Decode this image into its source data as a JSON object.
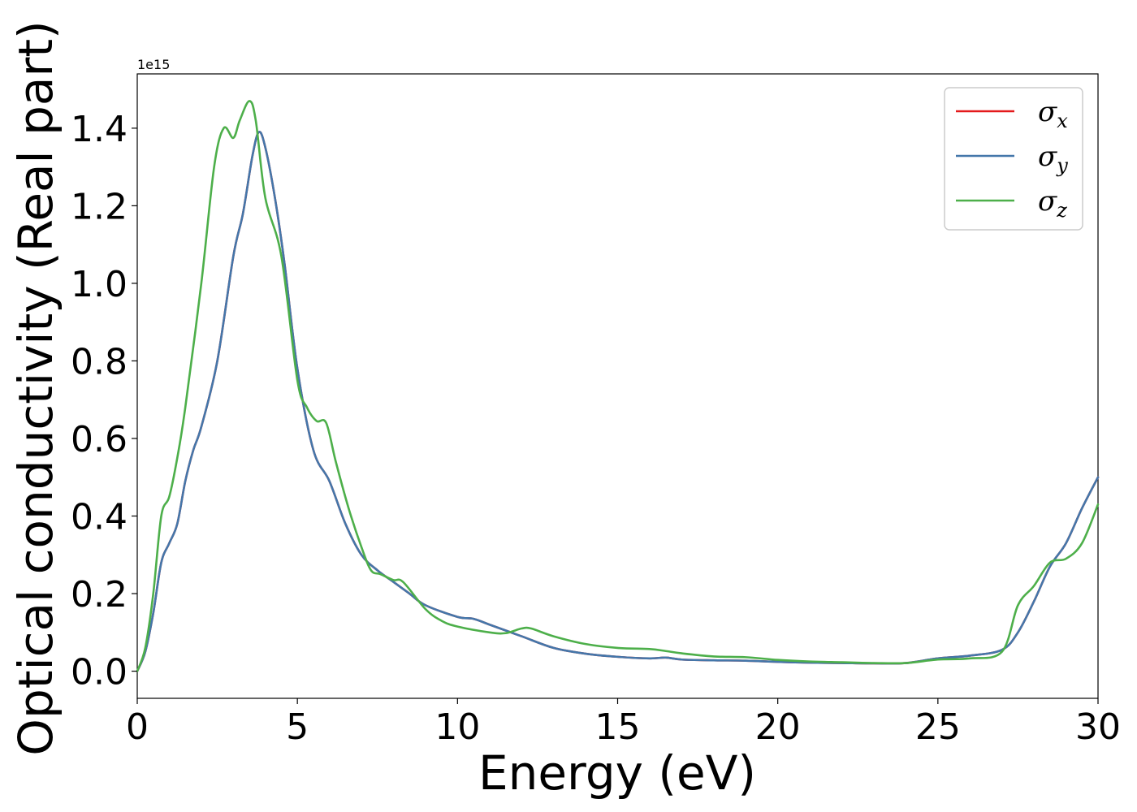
{
  "chart_data": {
    "type": "line",
    "title": "",
    "xlabel": "Energy (eV)",
    "ylabel": "Optical conductivity (Real part)",
    "y_offset_text": "1e15",
    "xlim": [
      0,
      30
    ],
    "ylim": [
      -0.07,
      1.54
    ],
    "x_ticks": [
      0,
      5,
      10,
      15,
      20,
      25,
      30
    ],
    "x_tick_labels": [
      "0",
      "5",
      "10",
      "15",
      "20",
      "25",
      "30"
    ],
    "y_ticks": [
      0.0,
      0.2,
      0.4,
      0.6,
      0.8,
      1.0,
      1.2,
      1.4
    ],
    "y_tick_labels": [
      "0.0",
      "0.2",
      "0.4",
      "0.6",
      "0.8",
      "1.0",
      "1.2",
      "1.4"
    ],
    "grid": false,
    "legend_position": "top-right",
    "series": [
      {
        "name": "σx",
        "legend_base": "σ",
        "legend_sub": "x",
        "color": "#e41a1c",
        "x": [
          0,
          0.25,
          0.5,
          0.75,
          1.0,
          1.25,
          1.5,
          1.75,
          2.0,
          2.5,
          3.0,
          3.3,
          3.6,
          3.8,
          4.0,
          4.3,
          4.6,
          5.0,
          5.5,
          6.0,
          6.5,
          7.0,
          7.5,
          8.0,
          8.5,
          9.0,
          10.0,
          10.5,
          11.0,
          12.0,
          13.0,
          14.0,
          15.0,
          16.0,
          16.5,
          17.0,
          18.0,
          19.0,
          20.0,
          21.0,
          22.0,
          23.0,
          24.0,
          25.0,
          26.0,
          27.0,
          27.5,
          28.0,
          28.5,
          29.0,
          29.5,
          30.0
        ],
        "y": [
          0.0,
          0.05,
          0.15,
          0.28,
          0.33,
          0.38,
          0.49,
          0.57,
          0.63,
          0.8,
          1.07,
          1.18,
          1.33,
          1.39,
          1.35,
          1.22,
          1.05,
          0.78,
          0.57,
          0.49,
          0.38,
          0.3,
          0.26,
          0.23,
          0.2,
          0.17,
          0.14,
          0.135,
          0.12,
          0.09,
          0.06,
          0.045,
          0.037,
          0.033,
          0.035,
          0.03,
          0.028,
          0.027,
          0.024,
          0.022,
          0.021,
          0.02,
          0.021,
          0.033,
          0.04,
          0.055,
          0.1,
          0.18,
          0.27,
          0.33,
          0.42,
          0.5
        ]
      },
      {
        "name": "σy",
        "legend_base": "σ",
        "legend_sub": "y",
        "color": "#4477aa",
        "x": [
          0,
          0.25,
          0.5,
          0.75,
          1.0,
          1.25,
          1.5,
          1.75,
          2.0,
          2.5,
          3.0,
          3.3,
          3.6,
          3.8,
          4.0,
          4.3,
          4.6,
          5.0,
          5.5,
          6.0,
          6.5,
          7.0,
          7.5,
          8.0,
          8.5,
          9.0,
          10.0,
          10.5,
          11.0,
          12.0,
          13.0,
          14.0,
          15.0,
          16.0,
          16.5,
          17.0,
          18.0,
          19.0,
          20.0,
          21.0,
          22.0,
          23.0,
          24.0,
          25.0,
          26.0,
          27.0,
          27.5,
          28.0,
          28.5,
          29.0,
          29.5,
          30.0
        ],
        "y": [
          0.0,
          0.05,
          0.15,
          0.28,
          0.33,
          0.38,
          0.49,
          0.57,
          0.63,
          0.8,
          1.07,
          1.18,
          1.33,
          1.39,
          1.35,
          1.22,
          1.05,
          0.78,
          0.57,
          0.49,
          0.38,
          0.3,
          0.26,
          0.23,
          0.2,
          0.17,
          0.14,
          0.135,
          0.12,
          0.09,
          0.06,
          0.045,
          0.037,
          0.033,
          0.035,
          0.03,
          0.028,
          0.027,
          0.024,
          0.022,
          0.021,
          0.02,
          0.021,
          0.033,
          0.04,
          0.055,
          0.1,
          0.18,
          0.27,
          0.33,
          0.42,
          0.5
        ]
      },
      {
        "name": "σz",
        "legend_base": "σ",
        "legend_sub": "z",
        "color": "#4daf4a",
        "x": [
          0,
          0.25,
          0.5,
          0.75,
          1.0,
          1.25,
          1.5,
          2.0,
          2.4,
          2.7,
          3.0,
          3.2,
          3.5,
          3.7,
          4.0,
          4.5,
          5.0,
          5.3,
          5.6,
          5.9,
          6.2,
          6.6,
          7.0,
          7.3,
          7.6,
          8.0,
          8.3,
          9.0,
          9.5,
          10.0,
          11.0,
          11.5,
          12.0,
          12.3,
          13.0,
          14.0,
          15.0,
          16.0,
          16.5,
          17.0,
          18.0,
          19.0,
          20.0,
          21.0,
          22.0,
          23.0,
          24.0,
          25.0,
          26.0,
          27.0,
          27.5,
          28.0,
          28.5,
          29.0,
          29.5,
          30.0
        ],
        "y": [
          0.0,
          0.06,
          0.2,
          0.4,
          0.45,
          0.55,
          0.68,
          1.0,
          1.3,
          1.4,
          1.375,
          1.42,
          1.47,
          1.42,
          1.22,
          1.07,
          0.75,
          0.68,
          0.645,
          0.64,
          0.54,
          0.42,
          0.32,
          0.26,
          0.25,
          0.235,
          0.23,
          0.16,
          0.13,
          0.115,
          0.1,
          0.098,
          0.11,
          0.11,
          0.09,
          0.07,
          0.06,
          0.057,
          0.052,
          0.046,
          0.038,
          0.036,
          0.029,
          0.025,
          0.023,
          0.021,
          0.021,
          0.03,
          0.033,
          0.05,
          0.17,
          0.22,
          0.28,
          0.29,
          0.33,
          0.43
        ]
      }
    ]
  }
}
